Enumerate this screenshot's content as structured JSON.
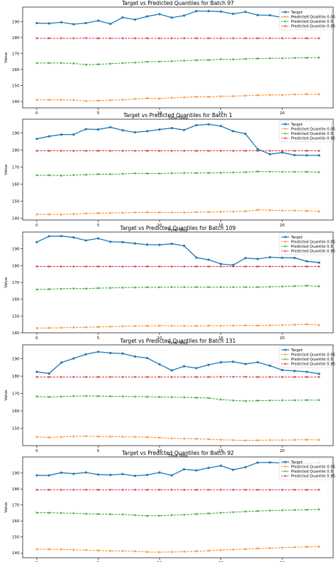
{
  "chart_data": [
    {
      "type": "line",
      "title": "Target vs Predicted Quantiles for Batch 97",
      "xlabel": "Time Step",
      "ylabel": "Value",
      "x": [
        0,
        1,
        2,
        3,
        4,
        5,
        6,
        7,
        8,
        9,
        10,
        11,
        12,
        13,
        14,
        15,
        16,
        17,
        18,
        19,
        20,
        21,
        22,
        23
      ],
      "xticks": [
        0,
        5,
        10,
        15,
        20
      ],
      "yticks": [
        140,
        150,
        160,
        170,
        180,
        190
      ],
      "ylim": [
        136,
        199
      ],
      "legend": "top-right",
      "series": [
        {
          "name": "Target",
          "color": "#1f77b4",
          "marker": "o",
          "linestyle": "solid",
          "values": [
            189,
            188.8,
            189.5,
            188.3,
            189,
            190.5,
            188.5,
            192.5,
            191.2,
            193.2,
            194.6,
            192.4,
            193.7,
            196.5,
            196.5,
            196.2,
            194.8,
            196,
            194,
            193.9,
            192.5,
            192.8,
            193.5,
            193.8
          ]
        },
        {
          "name": "Predicted Quantile 0.05",
          "color": "#ff7f0e",
          "marker": "x",
          "linestyle": "dashed",
          "values": [
            141,
            141,
            141,
            140.9,
            140.3,
            140.5,
            140.8,
            141,
            141.5,
            142,
            141.8,
            142.3,
            142.6,
            142.9,
            142.9,
            143.2,
            143.3,
            143.6,
            143.9,
            144.1,
            144,
            144.4,
            144.5,
            144.5
          ]
        },
        {
          "name": "Predicted Quantile 0.5",
          "color": "#2ca02c",
          "marker": "x",
          "linestyle": "dashed",
          "values": [
            164,
            164,
            164,
            163.8,
            163,
            163.2,
            163.6,
            164,
            164.3,
            164.8,
            164.9,
            165.2,
            165.5,
            165.8,
            165.9,
            166.4,
            166.3,
            166.6,
            166.8,
            167,
            167,
            167.2,
            167.3,
            167.4
          ]
        },
        {
          "name": "Predicted Quantile 0.95",
          "color": "#d62728",
          "marker": "x",
          "linestyle": "dashed",
          "values": [
            179.5,
            179.5,
            179.5,
            179.5,
            179.6,
            179.5,
            179.5,
            179.5,
            179.5,
            179.5,
            179.5,
            179.5,
            179.5,
            179.5,
            179.5,
            179.5,
            179.5,
            179.5,
            179.5,
            179.5,
            179.5,
            179.5,
            179.5,
            179.5
          ]
        }
      ]
    },
    {
      "type": "line",
      "title": "Target vs Predicted Quantiles for Batch 1",
      "xlabel": "Time Step",
      "ylabel": "Value",
      "x": [
        0,
        1,
        2,
        3,
        4,
        5,
        6,
        7,
        8,
        9,
        10,
        11,
        12,
        13,
        14,
        15,
        16,
        17,
        18,
        19,
        20,
        21,
        22,
        23
      ],
      "xticks": [
        0,
        5,
        10,
        15,
        20
      ],
      "yticks": [
        140,
        150,
        160,
        170,
        180,
        190
      ],
      "ylim": [
        139,
        198
      ],
      "legend": "top-right",
      "series": [
        {
          "name": "Target",
          "color": "#1f77b4",
          "marker": "o",
          "linestyle": "solid",
          "values": [
            186.5,
            188,
            189,
            189,
            192.2,
            192,
            193.3,
            191.5,
            190.3,
            191,
            192,
            192.8,
            191.7,
            194.5,
            195,
            194,
            191,
            189.5,
            180.5,
            177.5,
            178.5,
            177,
            176.8,
            176.8
          ]
        },
        {
          "name": "Predicted Quantile 0.05",
          "color": "#ff7f0e",
          "marker": "x",
          "linestyle": "dashed",
          "values": [
            142.3,
            142.3,
            142.2,
            142.5,
            142.8,
            143,
            143.1,
            143.2,
            143.4,
            143.5,
            143.4,
            143.4,
            143.4,
            143.6,
            143.6,
            143.8,
            143.9,
            144.1,
            144.9,
            144.7,
            144.5,
            144.5,
            144.3,
            144
          ]
        },
        {
          "name": "Predicted Quantile 0.5",
          "color": "#2ca02c",
          "marker": "x",
          "linestyle": "dashed",
          "values": [
            165.2,
            165.2,
            165,
            165.3,
            165.5,
            165.8,
            165.8,
            166,
            166.3,
            166.2,
            166.2,
            166.4,
            166.5,
            166.5,
            166.5,
            166.6,
            166.8,
            167,
            167.4,
            167.3,
            167.2,
            167.2,
            167.2,
            167
          ]
        },
        {
          "name": "Predicted Quantile 0.95",
          "color": "#d62728",
          "marker": "x",
          "linestyle": "dashed",
          "values": [
            179.5,
            179.5,
            179.5,
            179.5,
            179.5,
            179.5,
            179.5,
            179.5,
            179.5,
            179.5,
            179.5,
            179.5,
            179.5,
            179.5,
            179.5,
            179.5,
            179.5,
            179.5,
            179.5,
            179.5,
            179.5,
            179.5,
            179.5,
            179.5
          ]
        }
      ]
    },
    {
      "type": "line",
      "title": "Target vs Predicted Quantiles for Batch 109",
      "xlabel": "Time Step",
      "ylabel": "Value",
      "x": [
        0,
        1,
        2,
        3,
        4,
        5,
        6,
        7,
        8,
        9,
        10,
        11,
        12,
        13,
        14,
        15,
        16,
        17,
        18,
        19,
        20,
        21,
        22,
        23
      ],
      "xticks": [
        0,
        5,
        10,
        15,
        20
      ],
      "yticks": [
        140,
        150,
        160,
        170,
        180,
        190
      ],
      "ylim": [
        140,
        200
      ],
      "legend": "top-right",
      "series": [
        {
          "name": "Target",
          "color": "#1f77b4",
          "marker": "o",
          "linestyle": "solid",
          "values": [
            194,
            197.5,
            197.6,
            196.8,
            195,
            196.2,
            194.2,
            194,
            193.2,
            192.5,
            192.4,
            193,
            191.8,
            184.8,
            183.5,
            181,
            180.3,
            184.5,
            184,
            185,
            184.7,
            184.6,
            182.6,
            181.8
          ]
        },
        {
          "name": "Predicted Quantile 0.05",
          "color": "#ff7f0e",
          "marker": "x",
          "linestyle": "dashed",
          "values": [
            142.8,
            142.9,
            143,
            143.2,
            143.3,
            143.5,
            143.7,
            143.9,
            144,
            144.1,
            144.2,
            144.2,
            144.1,
            144.1,
            144.2,
            144.2,
            144.3,
            144.4,
            144.3,
            144.5,
            144.6,
            144.8,
            145.1,
            144.6
          ]
        },
        {
          "name": "Predicted Quantile 0.5",
          "color": "#2ca02c",
          "marker": "x",
          "linestyle": "dashed",
          "values": [
            165.8,
            166,
            166.2,
            166.4,
            166.3,
            166.6,
            166.7,
            166.9,
            167,
            167.1,
            167.1,
            167.2,
            167.2,
            167.2,
            167.2,
            167.2,
            167.2,
            167.2,
            167.2,
            167.4,
            167.6,
            167.8,
            168,
            167.7
          ]
        },
        {
          "name": "Predicted Quantile 0.95",
          "color": "#d62728",
          "marker": "x",
          "linestyle": "dashed",
          "values": [
            179.5,
            179.5,
            179.5,
            179.5,
            179.5,
            179.5,
            179.5,
            179.5,
            179.5,
            179.5,
            179.5,
            179.5,
            179.5,
            179.5,
            179.5,
            179.5,
            179.5,
            179.5,
            179.5,
            179.5,
            179.5,
            179.5,
            179.5,
            179.5
          ]
        }
      ]
    },
    {
      "type": "line",
      "title": "Target vs Predicted Quantiles for Batch 131",
      "xlabel": "Time Step",
      "ylabel": "Value",
      "x": [
        0,
        1,
        2,
        3,
        4,
        5,
        6,
        7,
        8,
        9,
        10,
        11,
        12,
        13,
        14,
        15,
        16,
        17,
        18,
        19,
        20,
        21,
        22,
        23
      ],
      "xticks": [
        0,
        5,
        10,
        15,
        20
      ],
      "yticks": [
        150,
        160,
        170,
        180,
        190
      ],
      "ylim": [
        140,
        198
      ],
      "legend": "top-right",
      "series": [
        {
          "name": "Target",
          "color": "#1f77b4",
          "marker": "o",
          "linestyle": "solid",
          "values": [
            182.5,
            181.5,
            187.8,
            190.2,
            192.6,
            194,
            193.3,
            193,
            191.3,
            190.4,
            186.8,
            183.3,
            185.7,
            184.6,
            186.5,
            188,
            188.3,
            187,
            188,
            186,
            183.5,
            183,
            182.5,
            181.3
          ]
        },
        {
          "name": "Predicted Quantile 0.05",
          "color": "#ff7f0e",
          "marker": "x",
          "linestyle": "dashed",
          "values": [
            145,
            144.7,
            145,
            145.3,
            145.4,
            145.3,
            145.2,
            145.1,
            145,
            144.9,
            144.6,
            144.2,
            144,
            143.9,
            143.7,
            143.4,
            143.2,
            143,
            143.1,
            143.2,
            143.2,
            143.3,
            143.4,
            143.3
          ]
        },
        {
          "name": "Predicted Quantile 0.5",
          "color": "#2ca02c",
          "marker": "x",
          "linestyle": "dashed",
          "values": [
            168.3,
            168,
            168.2,
            168.5,
            168.6,
            168.5,
            168.4,
            168.3,
            168.2,
            168.1,
            168,
            167.9,
            167.8,
            167.6,
            167.4,
            166.5,
            166,
            165.7,
            165.9,
            166,
            166.1,
            166.1,
            166.2,
            166.2
          ]
        },
        {
          "name": "Predicted Quantile 0.95",
          "color": "#d62728",
          "marker": "x",
          "linestyle": "dashed",
          "values": [
            179.5,
            179.5,
            179.5,
            179.5,
            179.5,
            179.5,
            179.5,
            179.5,
            179.5,
            179.5,
            179.5,
            179.5,
            179.5,
            179.5,
            179.5,
            179.6,
            179.6,
            179.6,
            179.5,
            179.5,
            179.5,
            179.5,
            179.5,
            179.5
          ]
        }
      ]
    },
    {
      "type": "line",
      "title": "Target vs Predicted Quantiles for Batch 92",
      "xlabel": "Time Step",
      "ylabel": "Value",
      "x": [
        0,
        1,
        2,
        3,
        4,
        5,
        6,
        7,
        8,
        9,
        10,
        11,
        12,
        13,
        14,
        15,
        16,
        17,
        18,
        19,
        20,
        21,
        22,
        23
      ],
      "xticks": [
        0,
        5,
        10,
        15,
        20
      ],
      "yticks": [
        140,
        150,
        160,
        170,
        180,
        190
      ],
      "ylim": [
        137,
        200
      ],
      "legend": "top-right",
      "series": [
        {
          "name": "Target",
          "color": "#1f77b4",
          "marker": "o",
          "linestyle": "solid",
          "values": [
            188.5,
            188.5,
            190.2,
            189.5,
            190.3,
            189,
            188.8,
            189.3,
            188.2,
            188.8,
            190.3,
            188.5,
            192.3,
            191.6,
            193.2,
            194.5,
            192,
            193.6,
            196.5,
            196.6,
            196.3,
            195.5,
            196,
            196.4
          ]
        },
        {
          "name": "Predicted Quantile 0.05",
          "color": "#ff7f0e",
          "marker": "x",
          "linestyle": "dashed",
          "values": [
            142.3,
            142.3,
            142.2,
            142,
            141.8,
            141.5,
            141.3,
            141.2,
            141,
            140.6,
            140.5,
            140.6,
            140.8,
            141,
            141.4,
            141.8,
            142.1,
            142.4,
            142.8,
            143,
            143.3,
            143.6,
            143.8,
            143.9
          ]
        },
        {
          "name": "Predicted Quantile 0.5",
          "color": "#2ca02c",
          "marker": "x",
          "linestyle": "dashed",
          "values": [
            165.2,
            165.1,
            165,
            164.8,
            164.5,
            164.3,
            164.2,
            164.1,
            163.6,
            163.2,
            163.3,
            163.6,
            163.9,
            164.3,
            164.7,
            165.1,
            165.5,
            165.9,
            166.2,
            166.5,
            166.7,
            166.8,
            167,
            167.2
          ]
        },
        {
          "name": "Predicted Quantile 0.95",
          "color": "#d62728",
          "marker": "x",
          "linestyle": "dashed",
          "values": [
            179.5,
            179.5,
            179.5,
            179.5,
            179.5,
            179.5,
            179.5,
            179.5,
            179.5,
            179.5,
            179.5,
            179.5,
            179.5,
            179.5,
            179.5,
            179.5,
            179.5,
            179.5,
            179.5,
            179.5,
            179.5,
            179.5,
            179.5,
            179.5
          ]
        }
      ]
    }
  ]
}
